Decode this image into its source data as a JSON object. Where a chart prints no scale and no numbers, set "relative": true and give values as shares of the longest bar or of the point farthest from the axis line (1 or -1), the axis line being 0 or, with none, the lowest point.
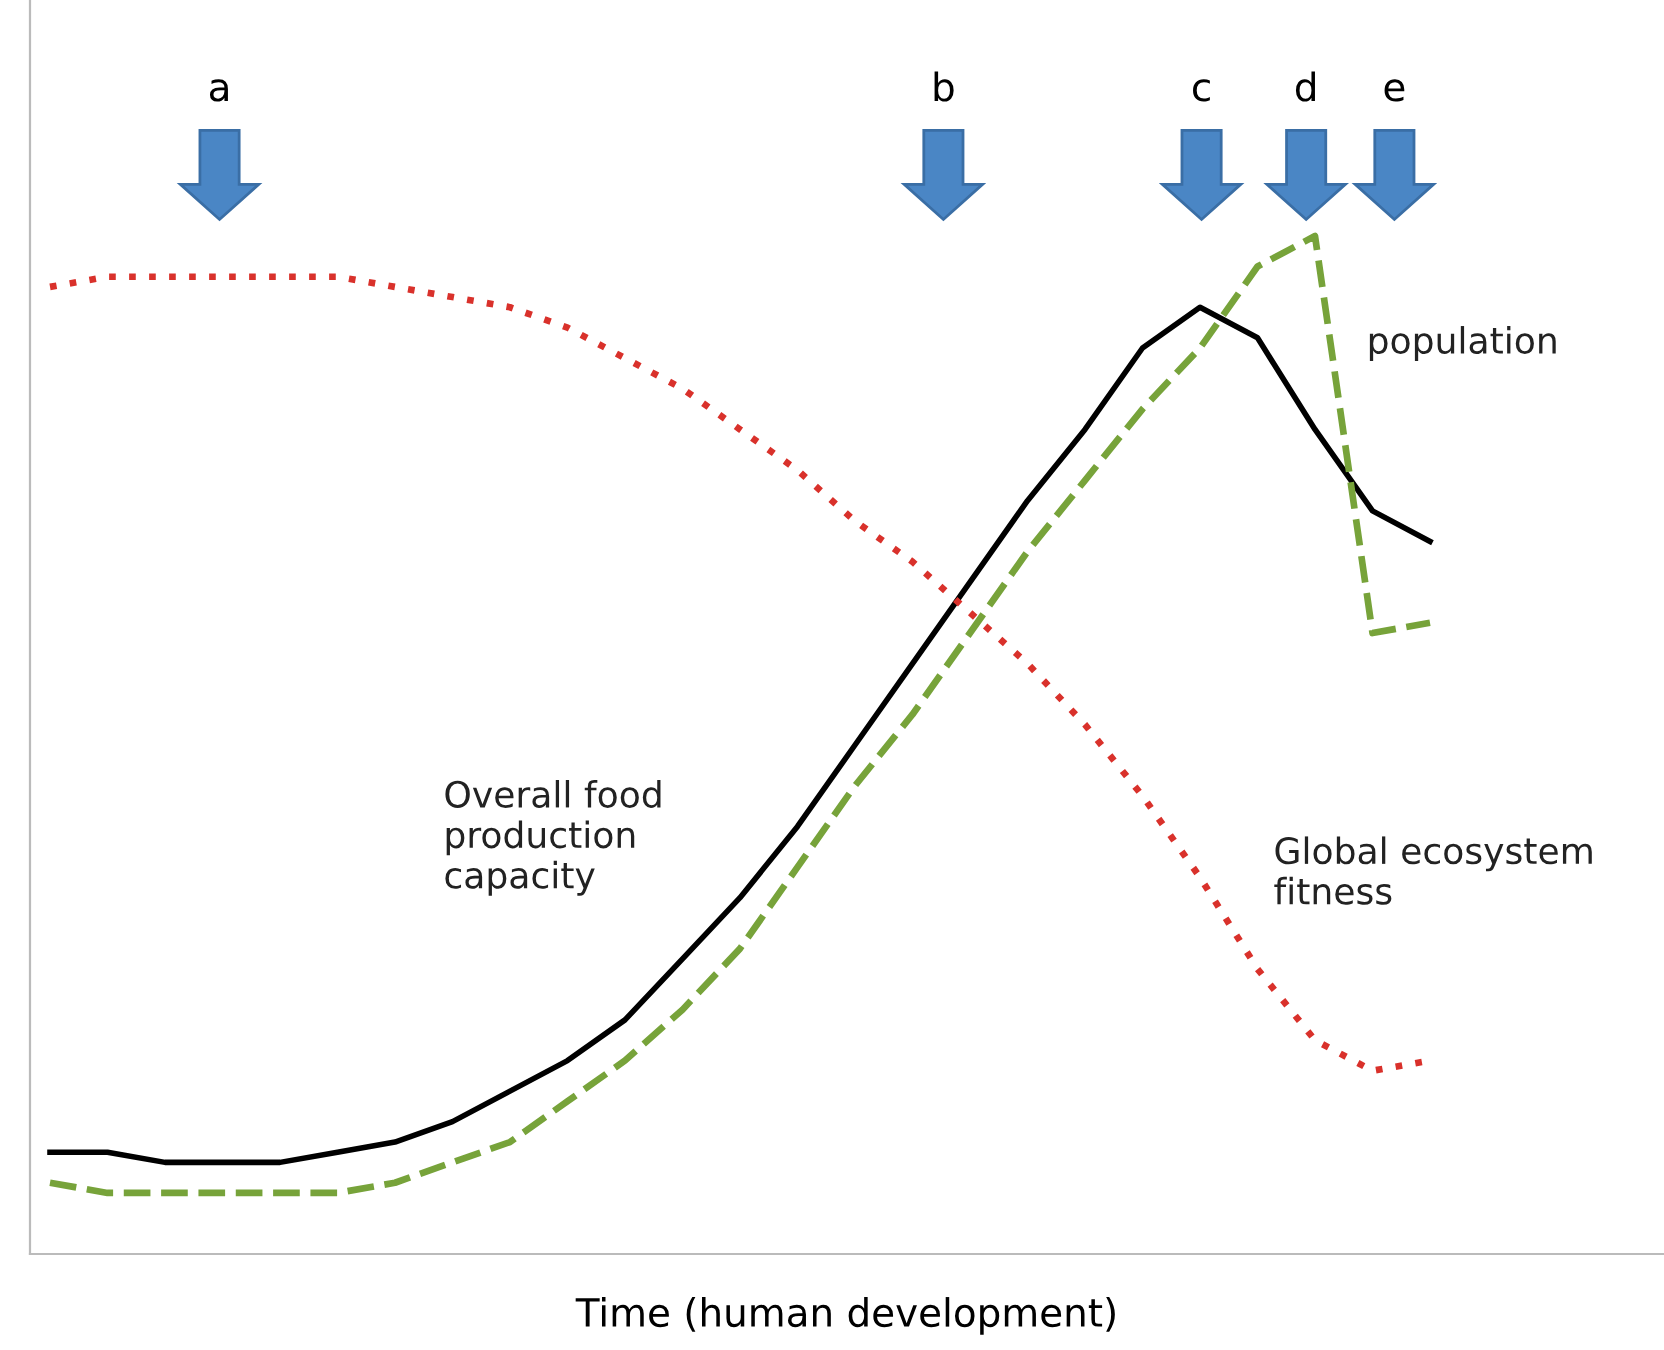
{
  "chart_data": {
    "type": "line",
    "relative": true,
    "xlabel": "Time (human development)",
    "categories": [
      null,
      null,
      null,
      null,
      null,
      null,
      null,
      null,
      null,
      null,
      null,
      null,
      null,
      null,
      null,
      null,
      null,
      null,
      null,
      null,
      null,
      null,
      null,
      null,
      null
    ],
    "series": [
      {
        "name": "Overall food\nproduction\ncapacity",
        "color": "#000000",
        "line_style": "solid",
        "values": [
          0.1,
          0.1,
          0.09,
          0.09,
          0.09,
          0.1,
          0.11,
          0.13,
          0.16,
          0.19,
          0.23,
          0.29,
          0.35,
          0.42,
          0.5,
          0.58,
          0.66,
          0.74,
          0.81,
          0.89,
          0.93,
          0.9,
          0.81,
          0.73,
          0.7
        ]
      },
      {
        "name": "population",
        "color": "#77a33a",
        "line_style": "dashed",
        "values": [
          0.07,
          0.06,
          0.06,
          0.06,
          0.06,
          0.06,
          0.07,
          0.09,
          0.11,
          0.15,
          0.19,
          0.24,
          0.3,
          0.38,
          0.46,
          0.53,
          0.61,
          0.69,
          0.76,
          0.83,
          0.89,
          0.97,
          1.0,
          0.61,
          0.62
        ]
      },
      {
        "name": "Global ecosystem\nfitness",
        "color": "#d9312b",
        "line_style": "dotted",
        "values": [
          0.95,
          0.96,
          0.96,
          0.96,
          0.96,
          0.96,
          0.95,
          0.94,
          0.93,
          0.91,
          0.88,
          0.85,
          0.81,
          0.77,
          0.72,
          0.68,
          0.63,
          0.58,
          0.52,
          0.45,
          0.37,
          0.28,
          0.21,
          0.18,
          0.19
        ]
      }
    ],
    "annotations": [
      "a",
      "b",
      "c",
      "d",
      "e"
    ],
    "grid": false,
    "legend": false,
    "marker": "none"
  }
}
